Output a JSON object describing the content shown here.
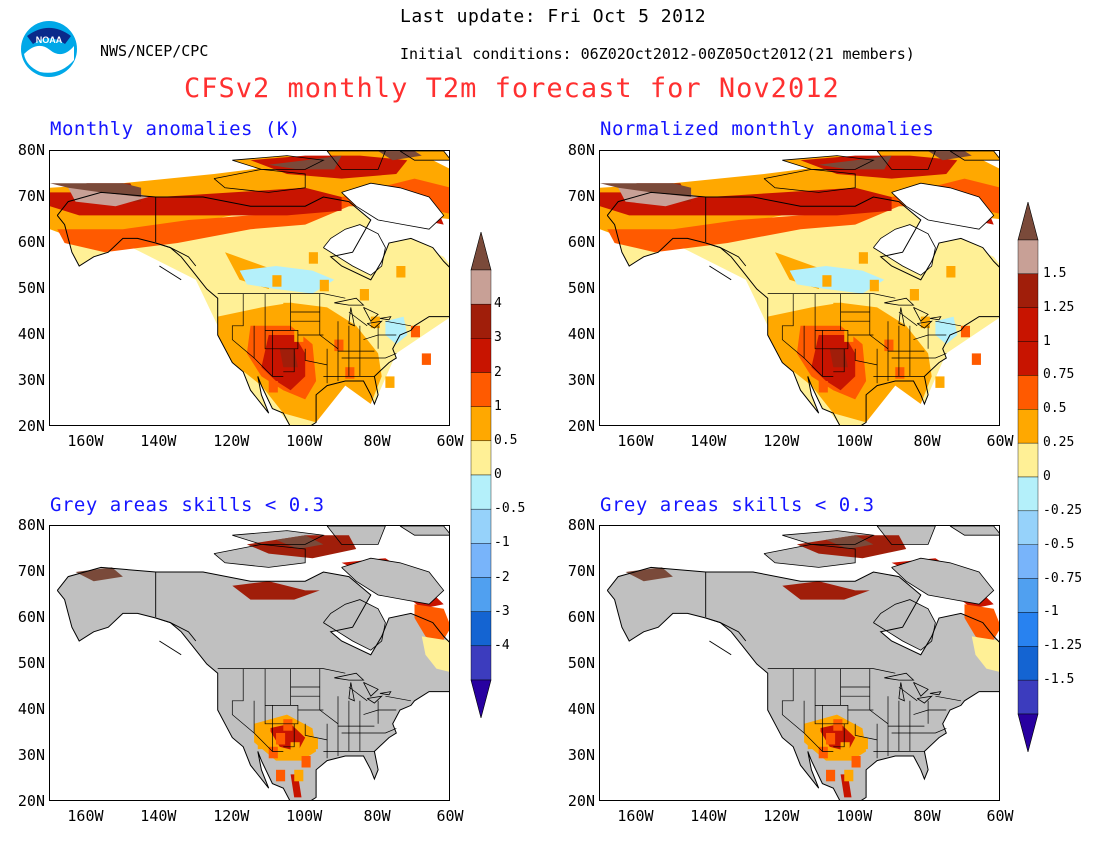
{
  "header": {
    "agency": "NWS/NCEP/CPC",
    "last_update": "Last update: Fri Oct 5 2012",
    "initial_conditions": "Initial conditions: 06Z02Oct2012-00Z05Oct2012(21 members)",
    "main_title": "CFSv2 monthly T2m forecast for Nov2012",
    "logo_text": "NOAA"
  },
  "panels": {
    "top_left_title": "Monthly anomalies (K)",
    "top_right_title": "Normalized monthly anomalies",
    "bottom_left_title": "Grey areas skills < 0.3",
    "bottom_right_title": "Grey areas skills < 0.3"
  },
  "axes": {
    "lat_labels": [
      "80N",
      "70N",
      "60N",
      "50N",
      "40N",
      "30N",
      "20N"
    ],
    "lon_labels": [
      "160W",
      "140W",
      "120W",
      "100W",
      "80W",
      "60W"
    ]
  },
  "colorbar_left": {
    "labels": [
      "4",
      "3",
      "2",
      "1",
      "0.5",
      "0",
      "-0.5",
      "-1",
      "-2",
      "-3",
      "-4"
    ]
  },
  "colorbar_right": {
    "labels": [
      "1.5",
      "1.25",
      "1",
      "0.75",
      "0.5",
      "0.25",
      "0",
      "-0.25",
      "-0.5",
      "-0.75",
      "-1",
      "-1.25",
      "-1.5"
    ]
  },
  "palette": {
    "warm": [
      "#fff096",
      "#ffa800",
      "#ff5a00",
      "#c81400",
      "#a01e0a",
      "#c8a096",
      "#7a4a3a"
    ],
    "cool": [
      "#b4f0fa",
      "#96d2fa",
      "#78b4fa",
      "#50a0f0",
      "#2882f0",
      "#1464d2",
      "#3c3cbe",
      "#2800a0"
    ],
    "grey_mask": "#c0c0c0",
    "title_red": "#ff3030",
    "title_blue": "#1515ff"
  }
}
